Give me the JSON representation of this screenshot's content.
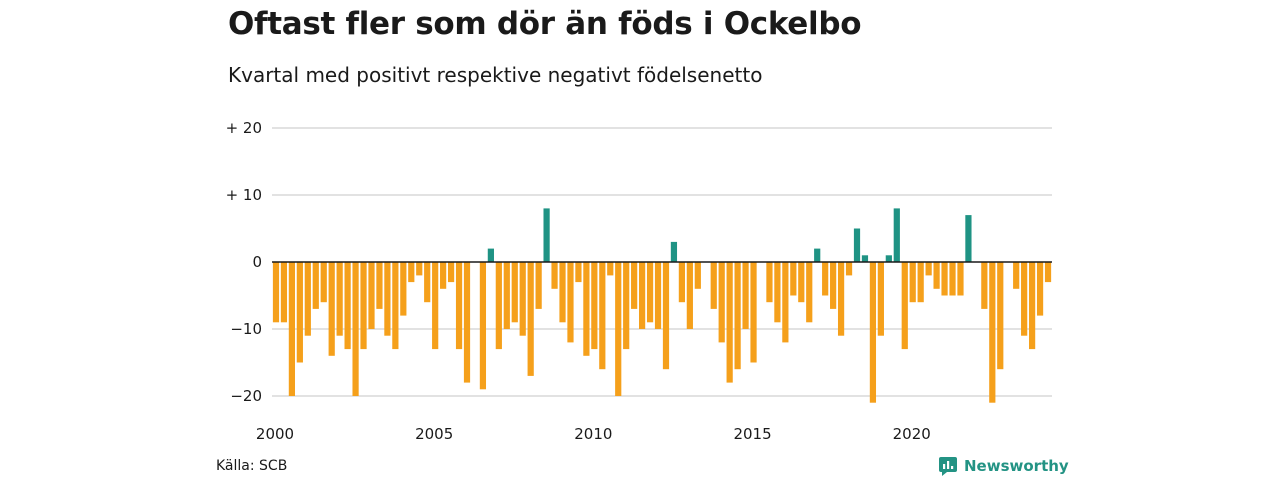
{
  "header": {
    "title": "Oftast fler som dör än föds i Ockelbo",
    "subtitle": "Kvartal med positivt respektive negativt födelsenetto"
  },
  "footer": {
    "source": "Källa: SCB",
    "brand": "Newsworthy",
    "brand_icon": "newsworthy-logo-icon"
  },
  "colors": {
    "positive": "#1f9384",
    "negative": "#f5a01b",
    "grid": "#d9d9d9",
    "baseline": "#1a1a1a"
  },
  "chart_data": {
    "type": "bar",
    "title": "Oftast fler som dör än föds i Ockelbo",
    "xlabel": "",
    "ylabel": "",
    "ylim": [
      -23,
      20
    ],
    "xlim": [
      "2000 Q1",
      "2024 Q4"
    ],
    "y_ticks": [
      {
        "value": 20,
        "label": "+ 20"
      },
      {
        "value": 10,
        "label": "+ 10"
      },
      {
        "value": 0,
        "label": "0"
      },
      {
        "value": -10,
        "label": "−10"
      },
      {
        "value": -20,
        "label": "−20"
      }
    ],
    "x_ticks": [
      {
        "year": 2000,
        "label": "2000"
      },
      {
        "year": 2005,
        "label": "2005"
      },
      {
        "year": 2010,
        "label": "2010"
      },
      {
        "year": 2015,
        "label": "2015"
      },
      {
        "year": 2020,
        "label": "2020"
      }
    ],
    "start_year": 2000,
    "quarters_per_year": 4,
    "values": [
      -9,
      -9,
      -20,
      -15,
      -11,
      -7,
      -6,
      -14,
      -11,
      -13,
      -20,
      -13,
      -10,
      -7,
      -11,
      -13,
      -8,
      -3,
      -2,
      -6,
      -13,
      -4,
      -3,
      -13,
      -18,
      0,
      -19,
      2,
      -13,
      -10,
      -9,
      -11,
      -17,
      -7,
      8,
      -4,
      -9,
      -12,
      -3,
      -14,
      -13,
      -16,
      -2,
      -20,
      -13,
      -7,
      -10,
      -9,
      -10,
      -16,
      3,
      -6,
      -10,
      -4,
      0,
      -7,
      -12,
      -18,
      -16,
      -10,
      -15,
      0,
      -6,
      -9,
      -12,
      -5,
      -6,
      -9,
      2,
      -5,
      -7,
      -11,
      -2,
      5,
      1,
      -21,
      -11,
      1,
      8,
      -13,
      -6,
      -6,
      -2,
      -4,
      -5,
      -5,
      -5,
      7,
      0,
      -7,
      -21,
      -16,
      0,
      -4,
      -11,
      -13,
      -8,
      -3
    ]
  }
}
